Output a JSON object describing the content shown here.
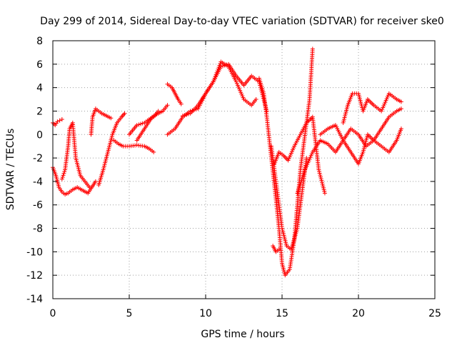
{
  "chart_data": {
    "type": "scatter",
    "title": "Day 299 of 2014, Sidereal Day-to-day VTEC variation (SDTVAR) for receiver ske0",
    "xlabel": "GPS time / hours",
    "ylabel": "SDTVAR / TECUs",
    "xlim": [
      0,
      25
    ],
    "ylim": [
      -14,
      8
    ],
    "xticks": [
      "0",
      "5",
      "10",
      "15",
      "20",
      "25"
    ],
    "yticks": [
      "-14",
      "-12",
      "-10",
      "-8",
      "-6",
      "-4",
      "-2",
      "0",
      "2",
      "4",
      "6",
      "8"
    ],
    "grid": true,
    "marker": "plus",
    "color": "#ff0000",
    "series": [
      {
        "x": [
          0.0,
          0.2,
          0.4,
          0.6,
          0.8,
          1.0,
          1.3,
          1.6,
          2.0,
          2.3,
          2.5,
          2.8
        ],
        "y": [
          -2.8,
          -3.5,
          -4.5,
          -4.9,
          -5.1,
          -5.0,
          -4.7,
          -4.5,
          -4.8,
          -5.0,
          -4.6,
          -4.0
        ]
      },
      {
        "x": [
          0.0,
          0.15,
          0.3,
          0.45,
          0.6
        ],
        "y": [
          1.0,
          0.8,
          1.1,
          1.2,
          1.3
        ]
      },
      {
        "x": [
          0.6,
          0.8,
          1.0,
          1.1,
          1.3,
          1.5,
          1.8,
          2.1,
          2.4
        ],
        "y": [
          -3.8,
          -3.0,
          -1.0,
          0.5,
          1.0,
          -2.0,
          -3.5,
          -4.0,
          -4.5
        ]
      },
      {
        "x": [
          2.5,
          2.6,
          2.8,
          3.0,
          3.2,
          3.5,
          3.8
        ],
        "y": [
          0.0,
          1.5,
          2.2,
          2.0,
          1.8,
          1.6,
          1.4
        ]
      },
      {
        "x": [
          3.0,
          3.3,
          3.6,
          3.9,
          4.2,
          4.5,
          4.7
        ],
        "y": [
          -4.3,
          -3.0,
          -1.5,
          0.0,
          1.0,
          1.5,
          1.8
        ]
      },
      {
        "x": [
          4.0,
          4.3,
          4.6,
          5.0,
          5.5,
          6.0,
          6.3,
          6.6
        ],
        "y": [
          -0.5,
          -0.8,
          -1.0,
          -1.0,
          -0.9,
          -1.0,
          -1.2,
          -1.5
        ]
      },
      {
        "x": [
          5.0,
          5.5,
          6.0,
          6.3,
          6.6,
          6.9
        ],
        "y": [
          0.0,
          0.8,
          1.0,
          1.3,
          1.5,
          2.0
        ]
      },
      {
        "x": [
          5.5,
          6.0,
          6.5,
          6.9,
          7.2,
          7.5
        ],
        "y": [
          -0.5,
          0.5,
          1.5,
          1.8,
          2.0,
          2.5
        ]
      },
      {
        "x": [
          7.5,
          7.8,
          8.0,
          8.2,
          8.4
        ],
        "y": [
          4.3,
          4.0,
          3.5,
          3.0,
          2.6
        ]
      },
      {
        "x": [
          7.5,
          8.0,
          8.5,
          9.0,
          9.5,
          10.0,
          10.5,
          11.0,
          11.5,
          12.0,
          12.5,
          13.0,
          13.3
        ],
        "y": [
          0.0,
          0.5,
          1.5,
          2.0,
          2.2,
          3.5,
          4.5,
          6.2,
          5.8,
          4.5,
          3.0,
          2.5,
          3.0
        ]
      },
      {
        "x": [
          8.5,
          9.0,
          9.5,
          10.0,
          10.5,
          11.0,
          11.5,
          12.0,
          12.5,
          13.0,
          13.5,
          14.0
        ],
        "y": [
          1.6,
          1.8,
          2.5,
          3.5,
          4.5,
          5.8,
          6.0,
          5.0,
          4.2,
          5.0,
          4.5,
          2.0
        ]
      },
      {
        "x": [
          13.5,
          13.8,
          14.0,
          14.3,
          14.6,
          14.8,
          15.0,
          15.2,
          15.5,
          15.8,
          16.0,
          16.2,
          16.4,
          16.6,
          16.8,
          17.0
        ],
        "y": [
          4.8,
          3.5,
          1.5,
          -2.0,
          -5.5,
          -8.0,
          -11.0,
          -12.0,
          -11.5,
          -9.0,
          -6.0,
          -3.0,
          -1.0,
          1.0,
          3.0,
          7.3
        ]
      },
      {
        "x": [
          14.3,
          14.6,
          15.0,
          15.3,
          15.6,
          16.0,
          16.3,
          16.6
        ],
        "y": [
          -1.0,
          -4.0,
          -8.0,
          -9.5,
          -9.8,
          -8.0,
          -5.0,
          -2.0
        ]
      },
      {
        "x": [
          14.5,
          14.8,
          15.1,
          15.4,
          15.8,
          16.2,
          16.6,
          17.0,
          17.4,
          17.8
        ],
        "y": [
          -2.5,
          -1.5,
          -1.8,
          -2.2,
          -1.0,
          0.0,
          1.0,
          1.5,
          -3.0,
          -5.0
        ]
      },
      {
        "x": [
          14.4,
          14.6,
          14.8
        ],
        "y": [
          -9.5,
          -10.0,
          -9.8
        ]
      },
      {
        "x": [
          16.0,
          16.5,
          17.0,
          17.5,
          18.0,
          18.5,
          19.0,
          19.5,
          20.0,
          20.5,
          21.0,
          21.5,
          22.0,
          22.5,
          22.8
        ],
        "y": [
          -5.0,
          -3.0,
          -1.5,
          -0.5,
          -0.8,
          -1.5,
          -0.5,
          0.5,
          0.0,
          -1.0,
          -0.5,
          0.5,
          1.5,
          2.0,
          2.2
        ]
      },
      {
        "x": [
          17.5,
          18.0,
          18.5,
          19.0,
          19.5,
          20.0,
          20.3,
          20.6,
          21.0,
          21.5,
          22.0,
          22.5,
          22.8
        ],
        "y": [
          0.0,
          0.5,
          0.8,
          -0.5,
          -1.5,
          -2.5,
          -1.5,
          0.0,
          -0.5,
          -1.0,
          -1.5,
          -0.5,
          0.5
        ]
      },
      {
        "x": [
          19.0,
          19.3,
          19.6,
          20.0,
          20.3,
          20.6,
          21.0,
          21.5,
          22.0,
          22.5,
          22.8
        ],
        "y": [
          1.0,
          2.5,
          3.5,
          3.5,
          2.0,
          3.0,
          2.5,
          2.0,
          3.5,
          3.0,
          2.8
        ]
      }
    ]
  }
}
